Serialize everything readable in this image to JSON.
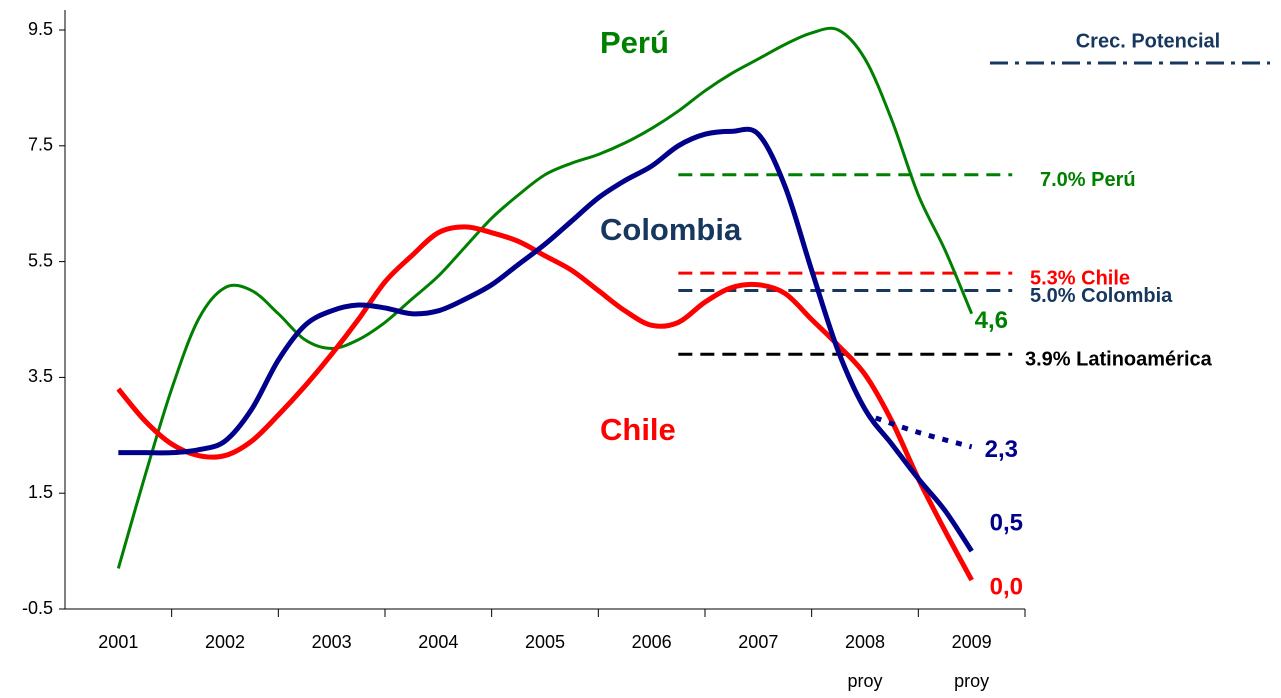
{
  "chart_data": {
    "type": "line",
    "xlim": [
      2000.5,
      2009.5
    ],
    "xticks": [
      2001,
      2002,
      2003,
      2004,
      2005,
      2006,
      2007,
      2008,
      2009
    ],
    "xtick_notes": [
      {
        "value": 2008,
        "label": "proy"
      },
      {
        "value": 2009,
        "label": "proy"
      }
    ],
    "ylim": [
      -0.5,
      9.5
    ],
    "yticks": [
      -0.5,
      1.5,
      3.5,
      5.5,
      7.5,
      9.5
    ],
    "x": [
      2001,
      2001.25,
      2001.5,
      2001.75,
      2002,
      2002.25,
      2002.5,
      2002.75,
      2003,
      2003.25,
      2003.5,
      2003.75,
      2004,
      2004.25,
      2004.5,
      2004.75,
      2005,
      2005.25,
      2005.5,
      2005.75,
      2006,
      2006.25,
      2006.5,
      2006.75,
      2007,
      2007.25,
      2007.5,
      2007.75,
      2008,
      2008.25,
      2008.5,
      2008.75,
      2009
    ],
    "series": [
      {
        "name": "Perú",
        "color": "#008000",
        "width": 3,
        "end_label": "4,6",
        "values": [
          0.2,
          1.8,
          3.3,
          4.5,
          5.05,
          5.0,
          4.6,
          4.15,
          4.0,
          4.15,
          4.45,
          4.85,
          5.25,
          5.75,
          6.25,
          6.65,
          7.0,
          7.2,
          7.35,
          7.55,
          7.8,
          8.1,
          8.45,
          8.75,
          9.0,
          9.25,
          9.45,
          9.5,
          9.0,
          7.95,
          6.65,
          5.7,
          4.6
        ]
      },
      {
        "name": "Chile",
        "color": "#ff0000",
        "width": 5,
        "end_label": "0,0",
        "values": [
          3.3,
          2.75,
          2.35,
          2.15,
          2.15,
          2.4,
          2.85,
          3.35,
          3.9,
          4.5,
          5.15,
          5.6,
          6.0,
          6.1,
          6.0,
          5.85,
          5.6,
          5.35,
          5.0,
          4.65,
          4.4,
          4.45,
          4.8,
          5.05,
          5.1,
          4.95,
          4.5,
          4.05,
          3.55,
          2.75,
          1.75,
          0.85,
          0.0
        ]
      },
      {
        "name": "Colombia",
        "color": "#00008b",
        "width": 5,
        "end_label": "0,5",
        "values": [
          2.2,
          2.2,
          2.2,
          2.25,
          2.4,
          2.95,
          3.8,
          4.4,
          4.65,
          4.75,
          4.7,
          4.6,
          4.65,
          4.85,
          5.1,
          5.45,
          5.8,
          6.2,
          6.6,
          6.9,
          7.15,
          7.5,
          7.7,
          7.75,
          7.7,
          6.8,
          5.35,
          3.95,
          2.95,
          2.35,
          1.75,
          1.2,
          0.5
        ]
      },
      {
        "color": "#00008b",
        "width": 5,
        "dash": "dotted",
        "end_label": "2,3",
        "x": [
          2008.1,
          2008.5,
          2009
        ],
        "values": [
          2.8,
          2.55,
          2.3
        ]
      }
    ],
    "reference_lines": [
      {
        "value": 7.0,
        "label": "7.0%  Perú",
        "color": "#008000"
      },
      {
        "value": 5.3,
        "label": "5.3%  Chile",
        "color": "#ff0000"
      },
      {
        "value": 5.0,
        "label": "5.0%  Colombia",
        "color": "#17375e"
      },
      {
        "value": 3.9,
        "label": "3.9%  Latinoamérica",
        "color": "#000000"
      }
    ],
    "legend": {
      "label": "Crec. Potencial",
      "color": "#17375e",
      "dash": "dashdot"
    }
  }
}
